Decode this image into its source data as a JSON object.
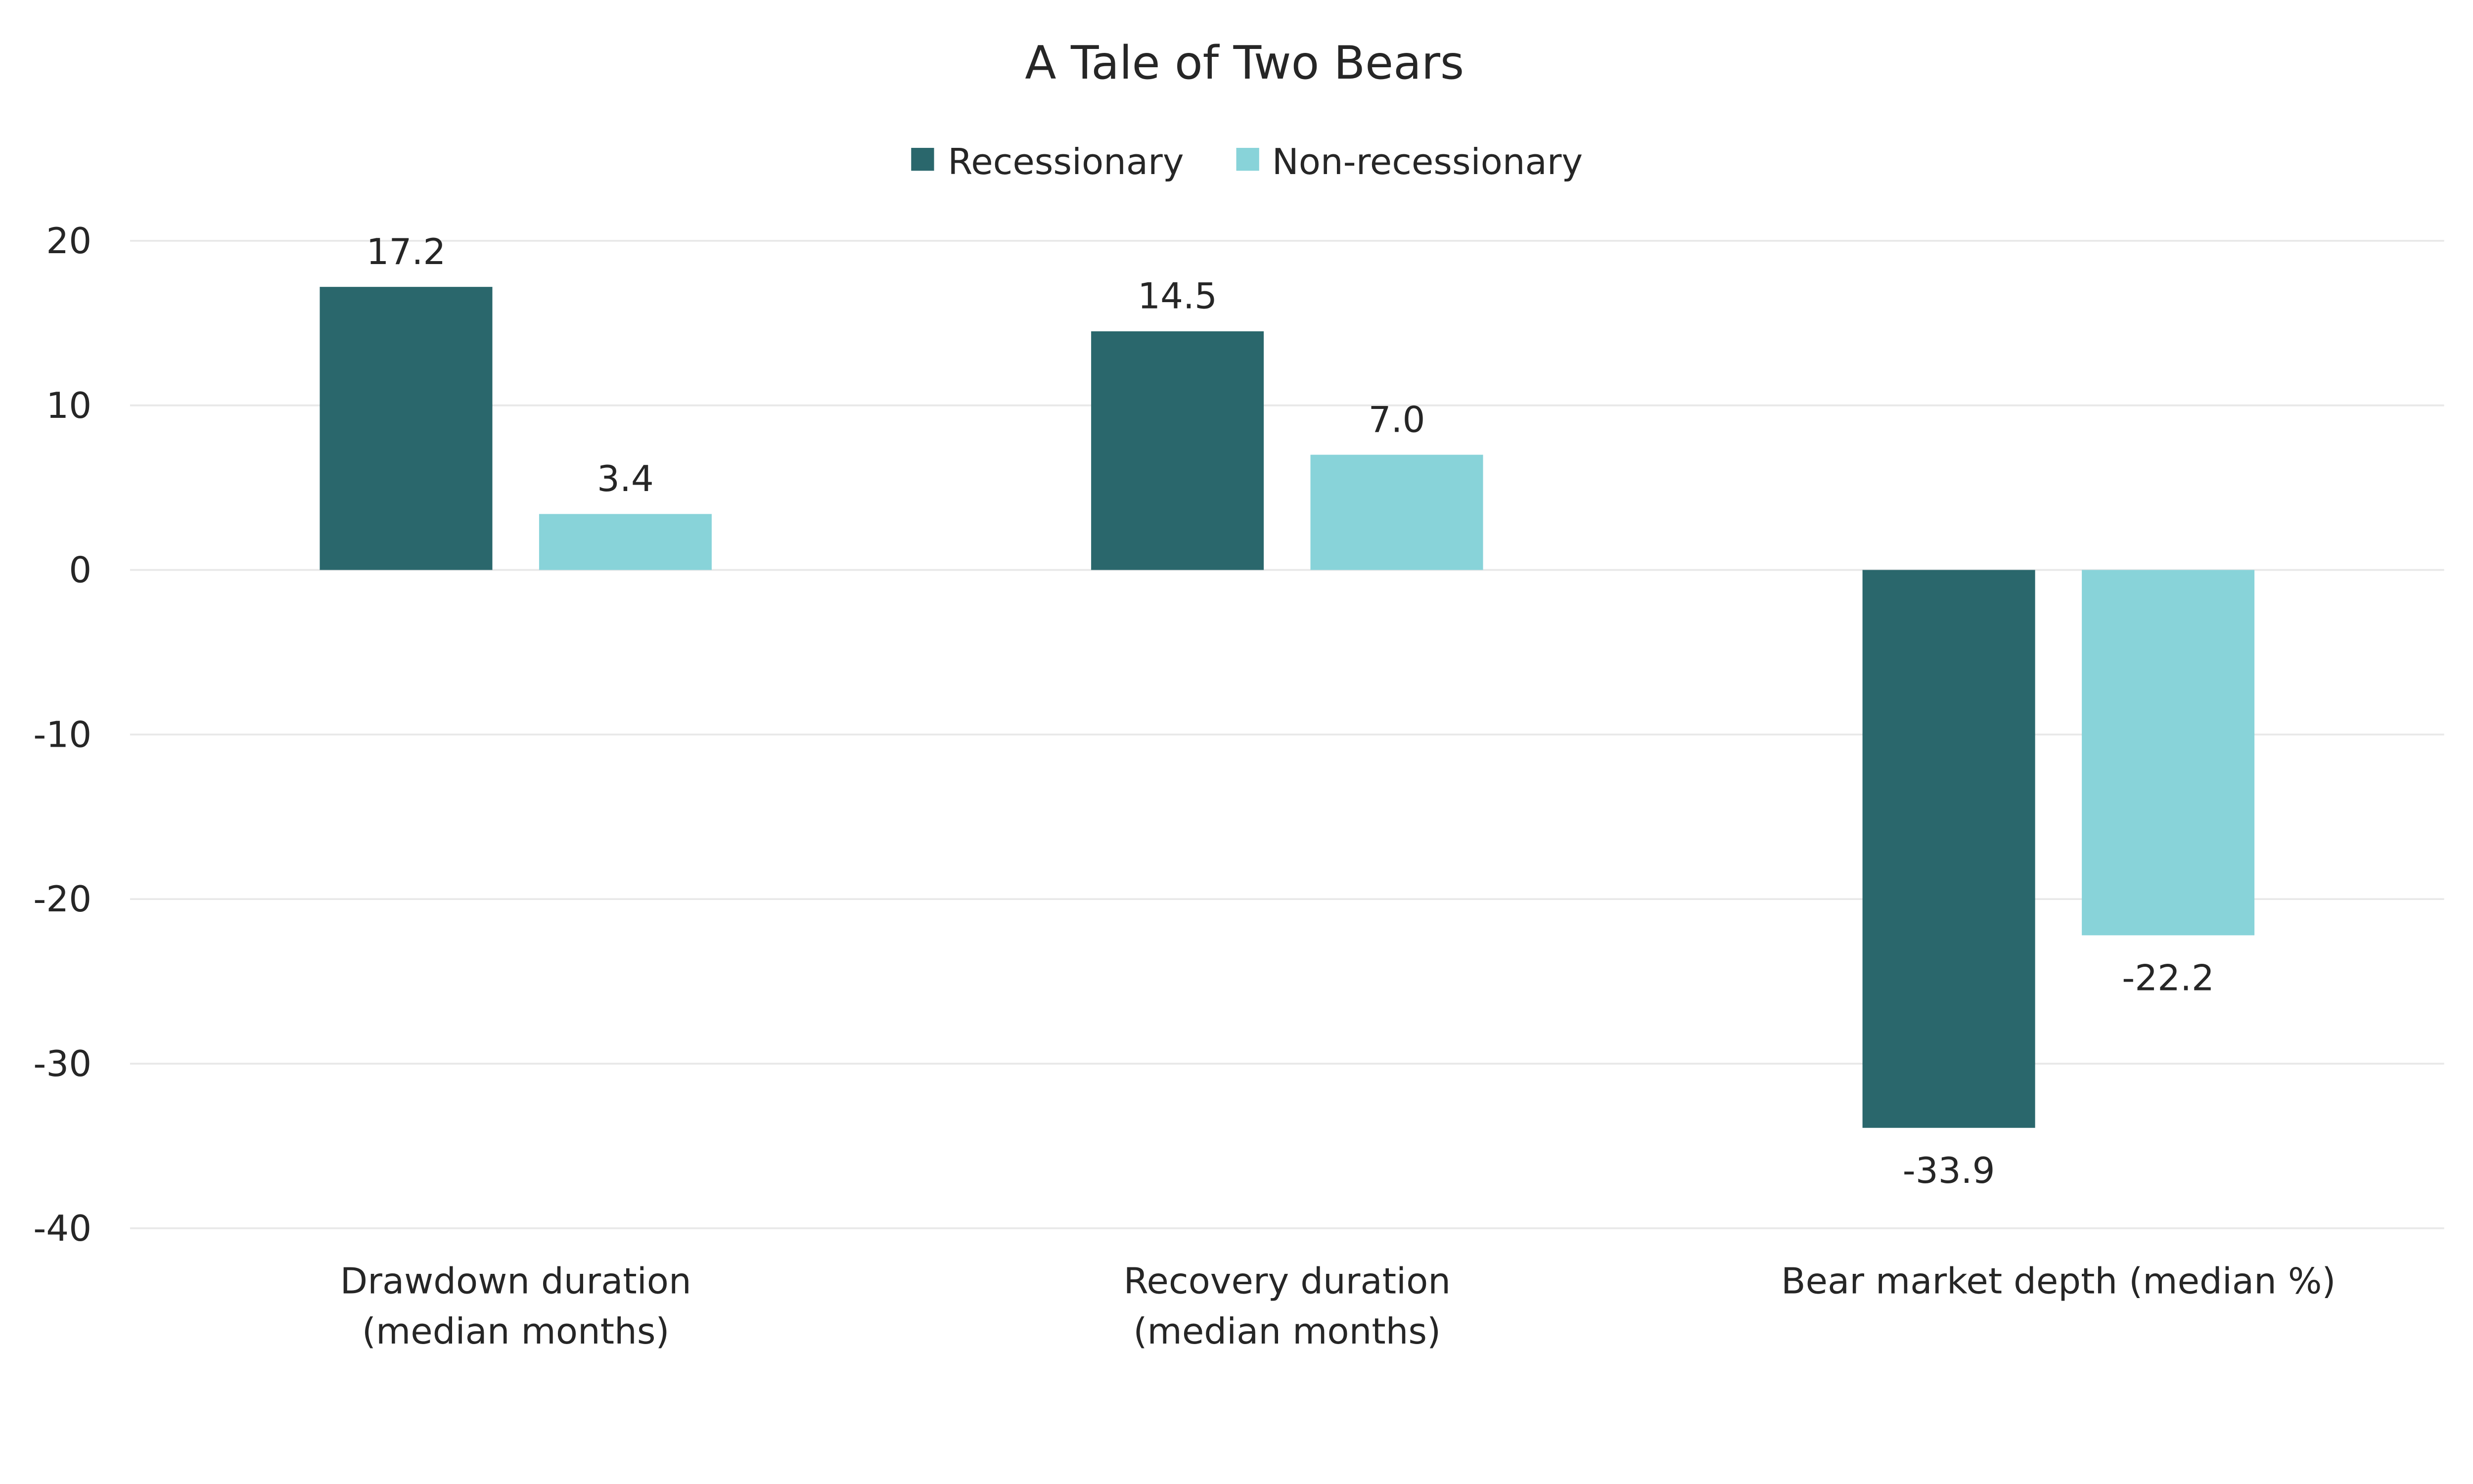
{
  "chart_data": {
    "type": "bar",
    "title": "A Tale of Two Bears",
    "categories": [
      [
        "Drawdown duration",
        "(median months)"
      ],
      [
        "Recovery duration",
        "(median months)"
      ],
      [
        "Bear market depth (median %)"
      ]
    ],
    "series": [
      {
        "name": "Recessionary",
        "color": "#2A676C",
        "values": [
          17.2,
          14.5,
          -33.9
        ]
      },
      {
        "name": "Non-recessionary",
        "color": "#88D3D9",
        "values": [
          3.4,
          7.0,
          -22.2
        ]
      }
    ],
    "data_labels": [
      [
        "17.2",
        "14.5",
        "-33.9"
      ],
      [
        "3.4",
        "7.0",
        "-22.2"
      ]
    ],
    "yticks": [
      20,
      10,
      0,
      -10,
      -20,
      -30,
      -40
    ],
    "ylim": [
      -40,
      20
    ],
    "xlabel": "",
    "ylabel": "",
    "grid": true,
    "legend": "top-center"
  }
}
